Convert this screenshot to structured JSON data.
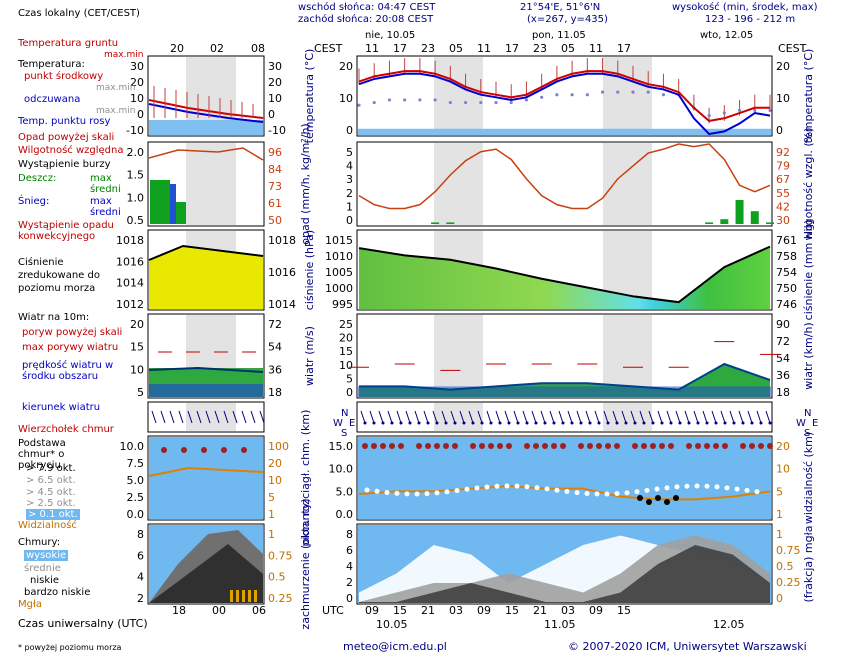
{
  "header": {
    "sunrise": "wschód słońca: 04:47 CEST",
    "sunset": "zachód słońca: 20:08 CEST",
    "coords": "21°54'E, 51°6'N",
    "grid": "(x=267, y=435)",
    "height_label": "wysokość (min, środek, max)",
    "height_values": "123 - 196 - 212 m",
    "tz_left": "CEST",
    "tz_right": "CEST",
    "days": [
      "nie, 10.05",
      "pon, 11.05",
      "wto, 12.05"
    ],
    "cest_hours": [
      "11",
      "17",
      "23",
      "05",
      "11",
      "17",
      "23",
      "05",
      "11",
      "17"
    ],
    "legend_hours": [
      "20",
      "02",
      "08"
    ]
  },
  "footer": {
    "utc": "UTC",
    "utc_hours": [
      "09",
      "15",
      "21",
      "03",
      "09",
      "15",
      "21",
      "03",
      "09",
      "15"
    ],
    "days": [
      "10.05",
      "11.05",
      "12.05"
    ],
    "legend_hours": [
      "18",
      "00",
      "06"
    ],
    "email": "meteo@icm.edu.pl",
    "copyright": "© 2007-2020 ICM, Uniwersytet Warszawski",
    "note": "* powyżej poziomu morza",
    "utc_label": "Czas uniwersalny (UTC)"
  },
  "legend": {
    "local_time": "Czas lokalny (CET/CEST)",
    "ground_temp": "Temperatura gruntu",
    "maxmin": "max.min",
    "temperature": "Temperatura:",
    "mid_point": "punkt środkowy",
    "maxmin2": "max.min",
    "apparent": "odczuwana",
    "maxmin3": "max.min",
    "dew": "Temp. punktu rosy",
    "precip_above": "Opad powyżej skali",
    "humidity": "Wilgotność względna",
    "storm": "Wystąpienie burzy",
    "rain": "Deszcz:",
    "max": "max",
    "avg": "średni",
    "snow": "Śnieg:",
    "max2": "max",
    "avg2": "średni",
    "conv": "Wystąpienie opadu konwekcyjnego",
    "pressure": "Ciśnienie zredukowane do poziomu morza",
    "wind_10m": "Wiatr na 10m:",
    "gust_above": "poryw powyżej skali",
    "max_gust": "max porywy wiatru",
    "wind_speed": "prędkość wiatru w środku obszaru",
    "wind_dir": "kierunek wiatru",
    "cloud_top": "Wierzchołek chmur",
    "cloud_base": "Podstawa chmur* o pokryciu",
    "okt": [
      "> 7.9 okt.",
      "> 6.5 okt.",
      "> 4.5 okt.",
      "> 2.5 okt.",
      "> 0.1 okt."
    ],
    "visibility": "Widzialność",
    "clouds": "Chmury:",
    "high": "wysokie",
    "mid": "średnie",
    "low": "niskie",
    "very_low": "bardzo niskie",
    "fog": "Mgła"
  },
  "panel_labels": {
    "temp_left": "temperatura (°C)",
    "temp_right": "temperatura (°C)",
    "precip_left": "opad (mm/h, kg/m²/h)",
    "precip_right": "wilgotność wzgl. (%)",
    "pressure_left": "ciśnienie (hPa)",
    "pressure_right": "ciśnienie (mm Hg)",
    "wind_left": "wiatr (m/s)",
    "wind_right": "wiatr (km/h)",
    "cloud_left": "pion. rozciągł. chm. (km)",
    "cloud_right": "widzialność (km)",
    "cover_left": "zachmurzenie (oktanty)",
    "cover_right": "(frakcja) mgła"
  },
  "axes": {
    "temp_left": [
      "20",
      "10",
      "0"
    ],
    "temp_right": [
      "20",
      "10",
      "0"
    ],
    "precip_left": [
      "5",
      "4",
      "3",
      "2",
      "1",
      "0"
    ],
    "precip_right": [
      "92",
      "79",
      "67",
      "55",
      "42",
      "30"
    ],
    "pressure_left": [
      "1015",
      "1010",
      "1005",
      "1000",
      "995"
    ],
    "pressure_right": [
      "761",
      "758",
      "754",
      "750",
      "746"
    ],
    "wind_left": [
      "25",
      "20",
      "15",
      "10",
      "5",
      "0"
    ],
    "wind_right": [
      "90",
      "72",
      "54",
      "36",
      "18"
    ],
    "cloud_left": [
      "15.0",
      "10.0",
      "5.0",
      "0.0"
    ],
    "cloud_right": [
      "20",
      "10",
      "5",
      "1"
    ],
    "cover_left": [
      "8",
      "6",
      "4",
      "2",
      "0"
    ],
    "cover_right": [
      "1",
      "0.75",
      "0.5",
      "0.25",
      "0"
    ],
    "leg_temp_left": [
      "30",
      "20",
      "10",
      "0",
      "-10"
    ],
    "leg_temp_right": [
      "30",
      "20",
      "10",
      "0",
      "-10"
    ],
    "leg_precip_left": [
      "2.0",
      "1.5",
      "1.0",
      "0.5"
    ],
    "leg_precip_right": [
      "96",
      "84",
      "73",
      "61",
      "50"
    ],
    "leg_press_left": [
      "1018",
      "1016",
      "1014",
      "1012"
    ],
    "leg_press_right": [
      "1018",
      "1016",
      "1014"
    ],
    "leg_wind_left": [
      "20",
      "15",
      "10",
      "5"
    ],
    "leg_wind_right": [
      "72",
      "54",
      "36",
      "18"
    ],
    "leg_cloud_left": [
      "10.0",
      "7.5",
      "5.0",
      "2.5",
      "0.0"
    ],
    "leg_cloud_right": [
      "100",
      "20",
      "10",
      "5",
      "1"
    ],
    "leg_cover_left": [
      "8",
      "6",
      "4",
      "2"
    ],
    "leg_cover_right": [
      "1",
      "0.75",
      "0.5",
      "0.25"
    ]
  },
  "colors": {
    "temp_line": "#d00000",
    "apparent_line": "#0000d0",
    "humidity_line": "#c84010",
    "pressure_fill": "#e8e800",
    "wind_dark": "#004090",
    "cloud_bg": "#70b8f0",
    "night_band": "#d0d0d0"
  },
  "chart_data": [
    {
      "type": "line",
      "name": "temperatura",
      "x": [
        "11",
        "13",
        "15",
        "17",
        "19",
        "21",
        "23",
        "01",
        "03",
        "05",
        "07",
        "09",
        "11",
        "13",
        "15",
        "17",
        "19",
        "21",
        "23",
        "01",
        "03",
        "05",
        "07",
        "09",
        "11",
        "13",
        "15",
        "17"
      ],
      "series": [
        {
          "name": "punkt środkowy",
          "values": [
            18,
            20,
            21,
            22,
            22,
            21,
            19,
            16,
            14,
            13,
            12,
            13,
            16,
            19,
            21,
            22,
            22,
            21,
            19,
            17,
            16,
            14,
            8,
            3,
            4,
            6,
            8,
            8
          ]
        },
        {
          "name": "odczuwana",
          "values": [
            17,
            19,
            20,
            21,
            21,
            20,
            18,
            15,
            13,
            12,
            11,
            12,
            15,
            18,
            20,
            21,
            21,
            20,
            18,
            16,
            15,
            13,
            4,
            -2,
            -1,
            2,
            6,
            5
          ]
        },
        {
          "name": "Temp. punktu rosy",
          "values": [
            9,
            10,
            11,
            11,
            11,
            11,
            10,
            10,
            10,
            10,
            10,
            11,
            12,
            13,
            13,
            13,
            14,
            14,
            14,
            14,
            13,
            13,
            8,
            5,
            6,
            7,
            7,
            7
          ]
        }
      ],
      "ylabel": "temperatura (°C)",
      "ylim": [
        -2,
        27
      ]
    },
    {
      "type": "line",
      "name": "opad / wilgotność",
      "x": [
        "11",
        "13",
        "15",
        "17",
        "19",
        "21",
        "23",
        "01",
        "03",
        "05",
        "07",
        "09",
        "11",
        "13",
        "15",
        "17",
        "19",
        "21",
        "23",
        "01",
        "03",
        "05",
        "07",
        "09",
        "11",
        "13",
        "15",
        "17"
      ],
      "series": [
        {
          "name": "Wilgotność względna",
          "values": [
            52,
            45,
            42,
            42,
            45,
            55,
            68,
            79,
            86,
            88,
            80,
            65,
            52,
            45,
            42,
            42,
            50,
            65,
            75,
            85,
            88,
            92,
            90,
            92,
            80,
            60,
            55,
            60
          ]
        },
        {
          "name": "Deszcz średni",
          "values": [
            0,
            0,
            0,
            0,
            0,
            0.1,
            0.1,
            0,
            0,
            0,
            0,
            0,
            0,
            0,
            0,
            0,
            0,
            0,
            0,
            0,
            0,
            0,
            0,
            0.1,
            0.3,
            1.5,
            0.8,
            0.1
          ]
        }
      ],
      "ylabel": "opad (mm/h, kg/m²/h)",
      "ylim": [
        0,
        5
      ]
    },
    {
      "type": "area",
      "name": "ciśnienie",
      "x": [
        "11",
        "17",
        "23",
        "05",
        "11",
        "17",
        "23",
        "05",
        "11",
        "17"
      ],
      "series": [
        {
          "name": "Ciśnienie",
          "values": [
            1012.5,
            1010,
            1008.5,
            1005.5,
            1002,
            999,
            996,
            994,
            1006,
            1013
          ]
        }
      ],
      "ylabel": "ciśnienie (hPa)",
      "ylim": [
        992,
        1018
      ]
    },
    {
      "type": "line",
      "name": "wiatr",
      "x": [
        "11",
        "17",
        "23",
        "05",
        "11",
        "17",
        "23",
        "05",
        "11",
        "17"
      ],
      "series": [
        {
          "name": "prędkość wiatru",
          "values": [
            3,
            3,
            2,
            3,
            4,
            4,
            3,
            2,
            10,
            5
          ]
        },
        {
          "name": "max porywy wiatru",
          "values": [
            9,
            10,
            8,
            10,
            10,
            10,
            9,
            9,
            17,
            13
          ]
        }
      ],
      "ylabel": "wiatr (m/s)",
      "ylim": [
        0,
        25
      ]
    },
    {
      "type": "scatter",
      "name": "chmury",
      "series": [
        {
          "name": "Wierzchołek chmur",
          "values": [
            12.5,
            12.5,
            12.5,
            12.5,
            12.5,
            12.5,
            12.5,
            11.5,
            10.5,
            10,
            10.5,
            10.5
          ]
        },
        {
          "name": "Widzialność",
          "values": [
            4.5,
            5,
            5,
            5.5,
            6,
            5.5,
            5.5,
            4,
            3.5,
            3.5,
            4,
            5
          ]
        }
      ],
      "ylabel": "pion. rozciągł. chm. (km)",
      "ylim": [
        0,
        15
      ]
    },
    {
      "type": "area",
      "name": "zachmurzenie",
      "series": [
        {
          "name": "wysokie",
          "values": [
            1,
            3,
            6,
            5,
            2,
            4,
            6,
            7,
            6,
            5,
            4,
            2
          ]
        },
        {
          "name": "średnie",
          "values": [
            0,
            1,
            2,
            2,
            3,
            2,
            1,
            3,
            6,
            7,
            6,
            3
          ]
        },
        {
          "name": "niskie",
          "values": [
            0,
            0,
            1,
            2,
            1,
            0,
            0,
            1,
            4,
            6,
            5,
            2
          ]
        }
      ],
      "ylabel": "zachmurzenie (oktanty)",
      "ylim": [
        0,
        8
      ]
    }
  ]
}
